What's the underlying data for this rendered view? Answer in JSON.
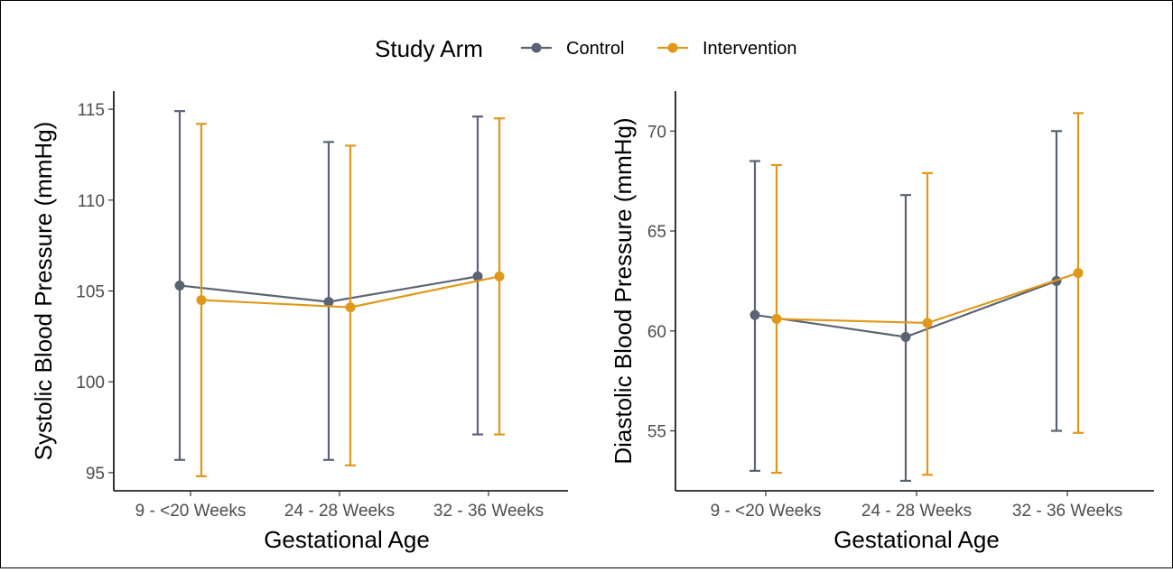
{
  "legend": {
    "title": "Study Arm",
    "items": [
      {
        "label": "Control",
        "color": "#5a6374"
      },
      {
        "label": "Intervention",
        "color": "#e0981b"
      }
    ]
  },
  "chart_data": [
    {
      "type": "line",
      "xlabel": "Gestational Age",
      "ylabel": "Systolic Blood Pressure (mmHg)",
      "categories": [
        "9 - <20 Weeks",
        "24 - 28 Weeks",
        "32 - 36 Weeks"
      ],
      "ylim": [
        94,
        116
      ],
      "yticks": [
        95,
        100,
        105,
        110,
        115
      ],
      "grid": false,
      "error_bars": true,
      "series": [
        {
          "name": "Control",
          "color": "#5a6374",
          "values": [
            105.3,
            104.4,
            105.8
          ],
          "lower": [
            95.7,
            95.7,
            97.1
          ],
          "upper": [
            114.9,
            113.2,
            114.6
          ]
        },
        {
          "name": "Intervention",
          "color": "#e0981b",
          "values": [
            104.5,
            104.1,
            105.8
          ],
          "lower": [
            94.8,
            95.4,
            97.1
          ],
          "upper": [
            114.2,
            113.0,
            114.5
          ]
        }
      ]
    },
    {
      "type": "line",
      "xlabel": "Gestational Age",
      "ylabel": "Diastolic Blood Pressure (mmHg)",
      "categories": [
        "9 - <20 Weeks",
        "24 - 28 Weeks",
        "32 - 36 Weeks"
      ],
      "ylim": [
        52,
        72
      ],
      "yticks": [
        55,
        60,
        65,
        70
      ],
      "grid": false,
      "error_bars": true,
      "series": [
        {
          "name": "Control",
          "color": "#5a6374",
          "values": [
            60.8,
            59.7,
            62.5
          ],
          "lower": [
            53.0,
            52.5,
            55.0
          ],
          "upper": [
            68.5,
            66.8,
            70.0
          ]
        },
        {
          "name": "Intervention",
          "color": "#e0981b",
          "values": [
            60.6,
            60.4,
            62.9
          ],
          "lower": [
            52.9,
            52.8,
            54.9
          ],
          "upper": [
            68.3,
            67.9,
            70.9
          ]
        }
      ]
    }
  ]
}
